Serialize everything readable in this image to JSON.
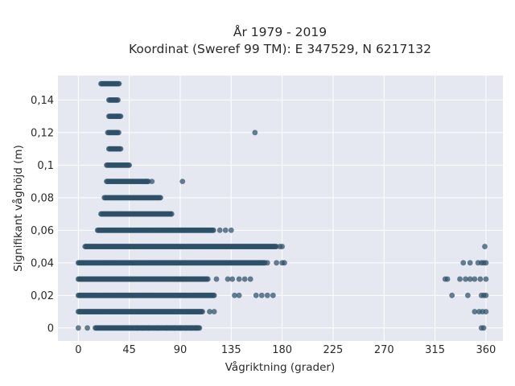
{
  "chart_data": {
    "type": "scatter",
    "title_line1": "År 1979 - 2019",
    "title_line2": "Koordinat (Sweref 99 TM): E 347529, N 6217132",
    "xlabel": "Vågriktning (grader)",
    "ylabel": "Signifikant våghöjd (m)",
    "xlim": [
      -18,
      375
    ],
    "ylim": [
      -0.008,
      0.155
    ],
    "x_ticks": [
      0,
      45,
      90,
      135,
      180,
      225,
      270,
      315,
      360
    ],
    "x_tick_labels": [
      "0",
      "45",
      "90",
      "135",
      "180",
      "225",
      "270",
      "315",
      "360"
    ],
    "y_ticks": [
      0,
      0.02,
      0.04,
      0.06,
      0.08,
      0.1,
      0.12,
      0.14
    ],
    "y_tick_labels": [
      "0",
      "0,02",
      "0,04",
      "0,06",
      "0,08",
      "0,1",
      "0,12",
      "0,14"
    ],
    "grid": true,
    "marker_color": "#2e5068",
    "background_color": "#e5e8f0",
    "bands": [
      {
        "y": 0.15,
        "x_from": 20,
        "x_to": 36
      },
      {
        "y": 0.14,
        "x_from": 27,
        "x_to": 35
      },
      {
        "y": 0.13,
        "x_from": 27,
        "x_to": 38
      },
      {
        "y": 0.12,
        "x_from": 26,
        "x_to": 36
      },
      {
        "y": 0.11,
        "x_from": 27,
        "x_to": 38
      },
      {
        "y": 0.1,
        "x_from": 25,
        "x_to": 45
      },
      {
        "y": 0.09,
        "x_from": 25,
        "x_to": 62
      },
      {
        "y": 0.08,
        "x_from": 23,
        "x_to": 73
      },
      {
        "y": 0.07,
        "x_from": 20,
        "x_to": 83
      },
      {
        "y": 0.06,
        "x_from": 17,
        "x_to": 120
      },
      {
        "y": 0.05,
        "x_from": 6,
        "x_to": 175
      },
      {
        "y": 0.04,
        "x_from": 0,
        "x_to": 165
      },
      {
        "y": 0.03,
        "x_from": 0,
        "x_to": 115
      },
      {
        "y": 0.02,
        "x_from": 0,
        "x_to": 120
      },
      {
        "y": 0.01,
        "x_from": 0,
        "x_to": 110
      },
      {
        "y": 0.0,
        "x_from": 15,
        "x_to": 107
      }
    ],
    "scattered_points": [
      [
        156,
        0.12
      ],
      [
        92,
        0.09
      ],
      [
        65,
        0.09
      ],
      [
        60,
        0.09
      ],
      [
        125,
        0.06
      ],
      [
        130,
        0.06
      ],
      [
        135,
        0.06
      ],
      [
        178,
        0.05
      ],
      [
        180,
        0.05
      ],
      [
        167,
        0.04
      ],
      [
        175,
        0.04
      ],
      [
        180,
        0.04
      ],
      [
        182,
        0.04
      ],
      [
        122,
        0.03
      ],
      [
        132,
        0.03
      ],
      [
        136,
        0.03
      ],
      [
        142,
        0.03
      ],
      [
        147,
        0.03
      ],
      [
        152,
        0.03
      ],
      [
        138,
        0.02
      ],
      [
        142,
        0.02
      ],
      [
        157,
        0.02
      ],
      [
        162,
        0.02
      ],
      [
        167,
        0.02
      ],
      [
        172,
        0.02
      ],
      [
        120,
        0.01
      ],
      [
        116,
        0.01
      ],
      [
        0,
        0.0
      ],
      [
        8,
        0.0
      ],
      [
        45,
        0.0
      ],
      [
        52,
        0.0
      ],
      [
        57,
        0.0
      ],
      [
        62,
        0.0
      ],
      [
        70,
        0.0
      ],
      [
        78,
        0.0
      ],
      [
        85,
        0.0
      ],
      [
        90,
        0.0
      ],
      [
        95,
        0.0
      ],
      [
        100,
        0.0
      ],
      [
        104,
        0.0
      ],
      [
        359,
        0.05
      ],
      [
        340,
        0.04
      ],
      [
        346,
        0.04
      ],
      [
        353,
        0.04
      ],
      [
        356,
        0.04
      ],
      [
        358,
        0.04
      ],
      [
        360,
        0.04
      ],
      [
        324,
        0.03
      ],
      [
        326,
        0.03
      ],
      [
        337,
        0.03
      ],
      [
        342,
        0.03
      ],
      [
        346,
        0.03
      ],
      [
        350,
        0.03
      ],
      [
        355,
        0.03
      ],
      [
        360,
        0.03
      ],
      [
        330,
        0.02
      ],
      [
        344,
        0.02
      ],
      [
        356,
        0.02
      ],
      [
        358,
        0.02
      ],
      [
        360,
        0.02
      ],
      [
        350,
        0.01
      ],
      [
        354,
        0.01
      ],
      [
        357,
        0.01
      ],
      [
        360,
        0.01
      ],
      [
        356,
        0.0
      ],
      [
        358,
        0.0
      ]
    ]
  }
}
